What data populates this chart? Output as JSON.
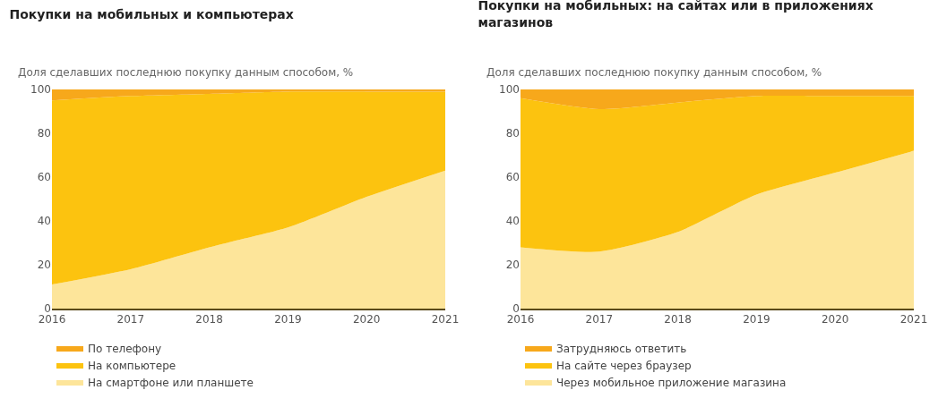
{
  "chart_data": [
    {
      "type": "area",
      "stacked": true,
      "title": "Покупки на мобильных и компьютерах",
      "ylabel": "Доля сделавших последнюю покупку данным способом, %",
      "x": [
        2016,
        2017,
        2018,
        2019,
        2020,
        2021
      ],
      "xlim": [
        2016,
        2021
      ],
      "xticks": [
        2016,
        2017,
        2018,
        2019,
        2020,
        2021
      ],
      "ylim": [
        0,
        100
      ],
      "yticks": [
        0,
        20,
        40,
        60,
        80,
        100
      ],
      "legend": "bottom",
      "series": [
        {
          "name": "На смартфоне или планшете",
          "color": "#fde59a",
          "values": [
            11,
            18,
            28,
            37,
            51,
            63
          ]
        },
        {
          "name": "На компьютере",
          "color": "#fcc30f",
          "values": [
            84,
            79,
            70,
            62,
            48,
            36
          ]
        },
        {
          "name": "По телефону",
          "color": "#f7a81b",
          "values": [
            5,
            3,
            2,
            1,
            1,
            1
          ]
        }
      ]
    },
    {
      "type": "area",
      "stacked": true,
      "title": "Покупки на мобильных: на сайтах или в приложениях магазинов",
      "ylabel": "Доля сделавших последнюю покупку данным способом, %",
      "x": [
        2016,
        2017,
        2018,
        2019,
        2020,
        2021
      ],
      "xlim": [
        2016,
        2021
      ],
      "xticks": [
        2016,
        2017,
        2018,
        2019,
        2020,
        2021
      ],
      "ylim": [
        0,
        100
      ],
      "yticks": [
        0,
        20,
        40,
        60,
        80,
        100
      ],
      "legend": "bottom",
      "series": [
        {
          "name": "Через мобильное приложение магазина",
          "color": "#fde59a",
          "values": [
            28,
            26,
            35,
            52,
            62,
            72
          ]
        },
        {
          "name": "На сайте через браузер",
          "color": "#fcc30f",
          "values": [
            68,
            65,
            59,
            45,
            35,
            25
          ]
        },
        {
          "name": "Затрудняюсь ответить",
          "color": "#f7a81b",
          "values": [
            4,
            9,
            6,
            3,
            3,
            3
          ]
        }
      ]
    }
  ]
}
